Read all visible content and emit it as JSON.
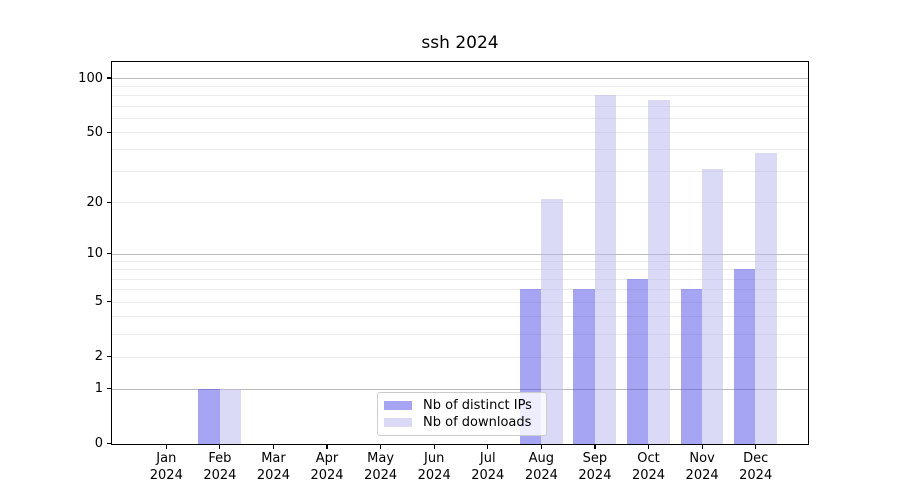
{
  "chart_data": {
    "type": "bar",
    "title": "ssh 2024",
    "categories": [
      "Jan 2024",
      "Feb 2024",
      "Mar 2024",
      "Apr 2024",
      "May 2024",
      "Jun 2024",
      "Jul 2024",
      "Aug 2024",
      "Sep 2024",
      "Oct 2024",
      "Nov 2024",
      "Dec 2024"
    ],
    "series": [
      {
        "name": "Nb of distinct IPs",
        "color": "rgba(75,75,233,0.5)",
        "values": [
          0,
          1,
          0,
          0,
          0,
          0,
          0,
          6,
          6,
          7,
          6,
          8
        ]
      },
      {
        "name": "Nb of downloads",
        "color": "rgba(181,181,239,0.5)",
        "values": [
          0,
          1,
          0,
          0,
          0,
          0,
          0,
          21,
          80,
          75,
          31,
          38
        ]
      }
    ],
    "xlabel": "",
    "ylabel": "",
    "y_axis": {
      "scale": "symlog (position = log10(1+value))",
      "tick_labels": [
        "0",
        "1",
        "2",
        "5",
        "10",
        "20",
        "50",
        "100"
      ],
      "tick_values": [
        0,
        1,
        2,
        5,
        10,
        20,
        50,
        100
      ],
      "ylim": [
        0,
        127
      ]
    },
    "grid": "on",
    "legend_position": "lower center"
  },
  "style": {
    "background": "#ffffff",
    "axis_color": "#000000",
    "major_grid_color": "#bbbbbb",
    "minor_grid_color": "#ebebeb",
    "bar_color_distinct_ips": "rgba(75,75,233,0.5)",
    "bar_color_downloads": "rgba(181,181,239,0.5)"
  }
}
